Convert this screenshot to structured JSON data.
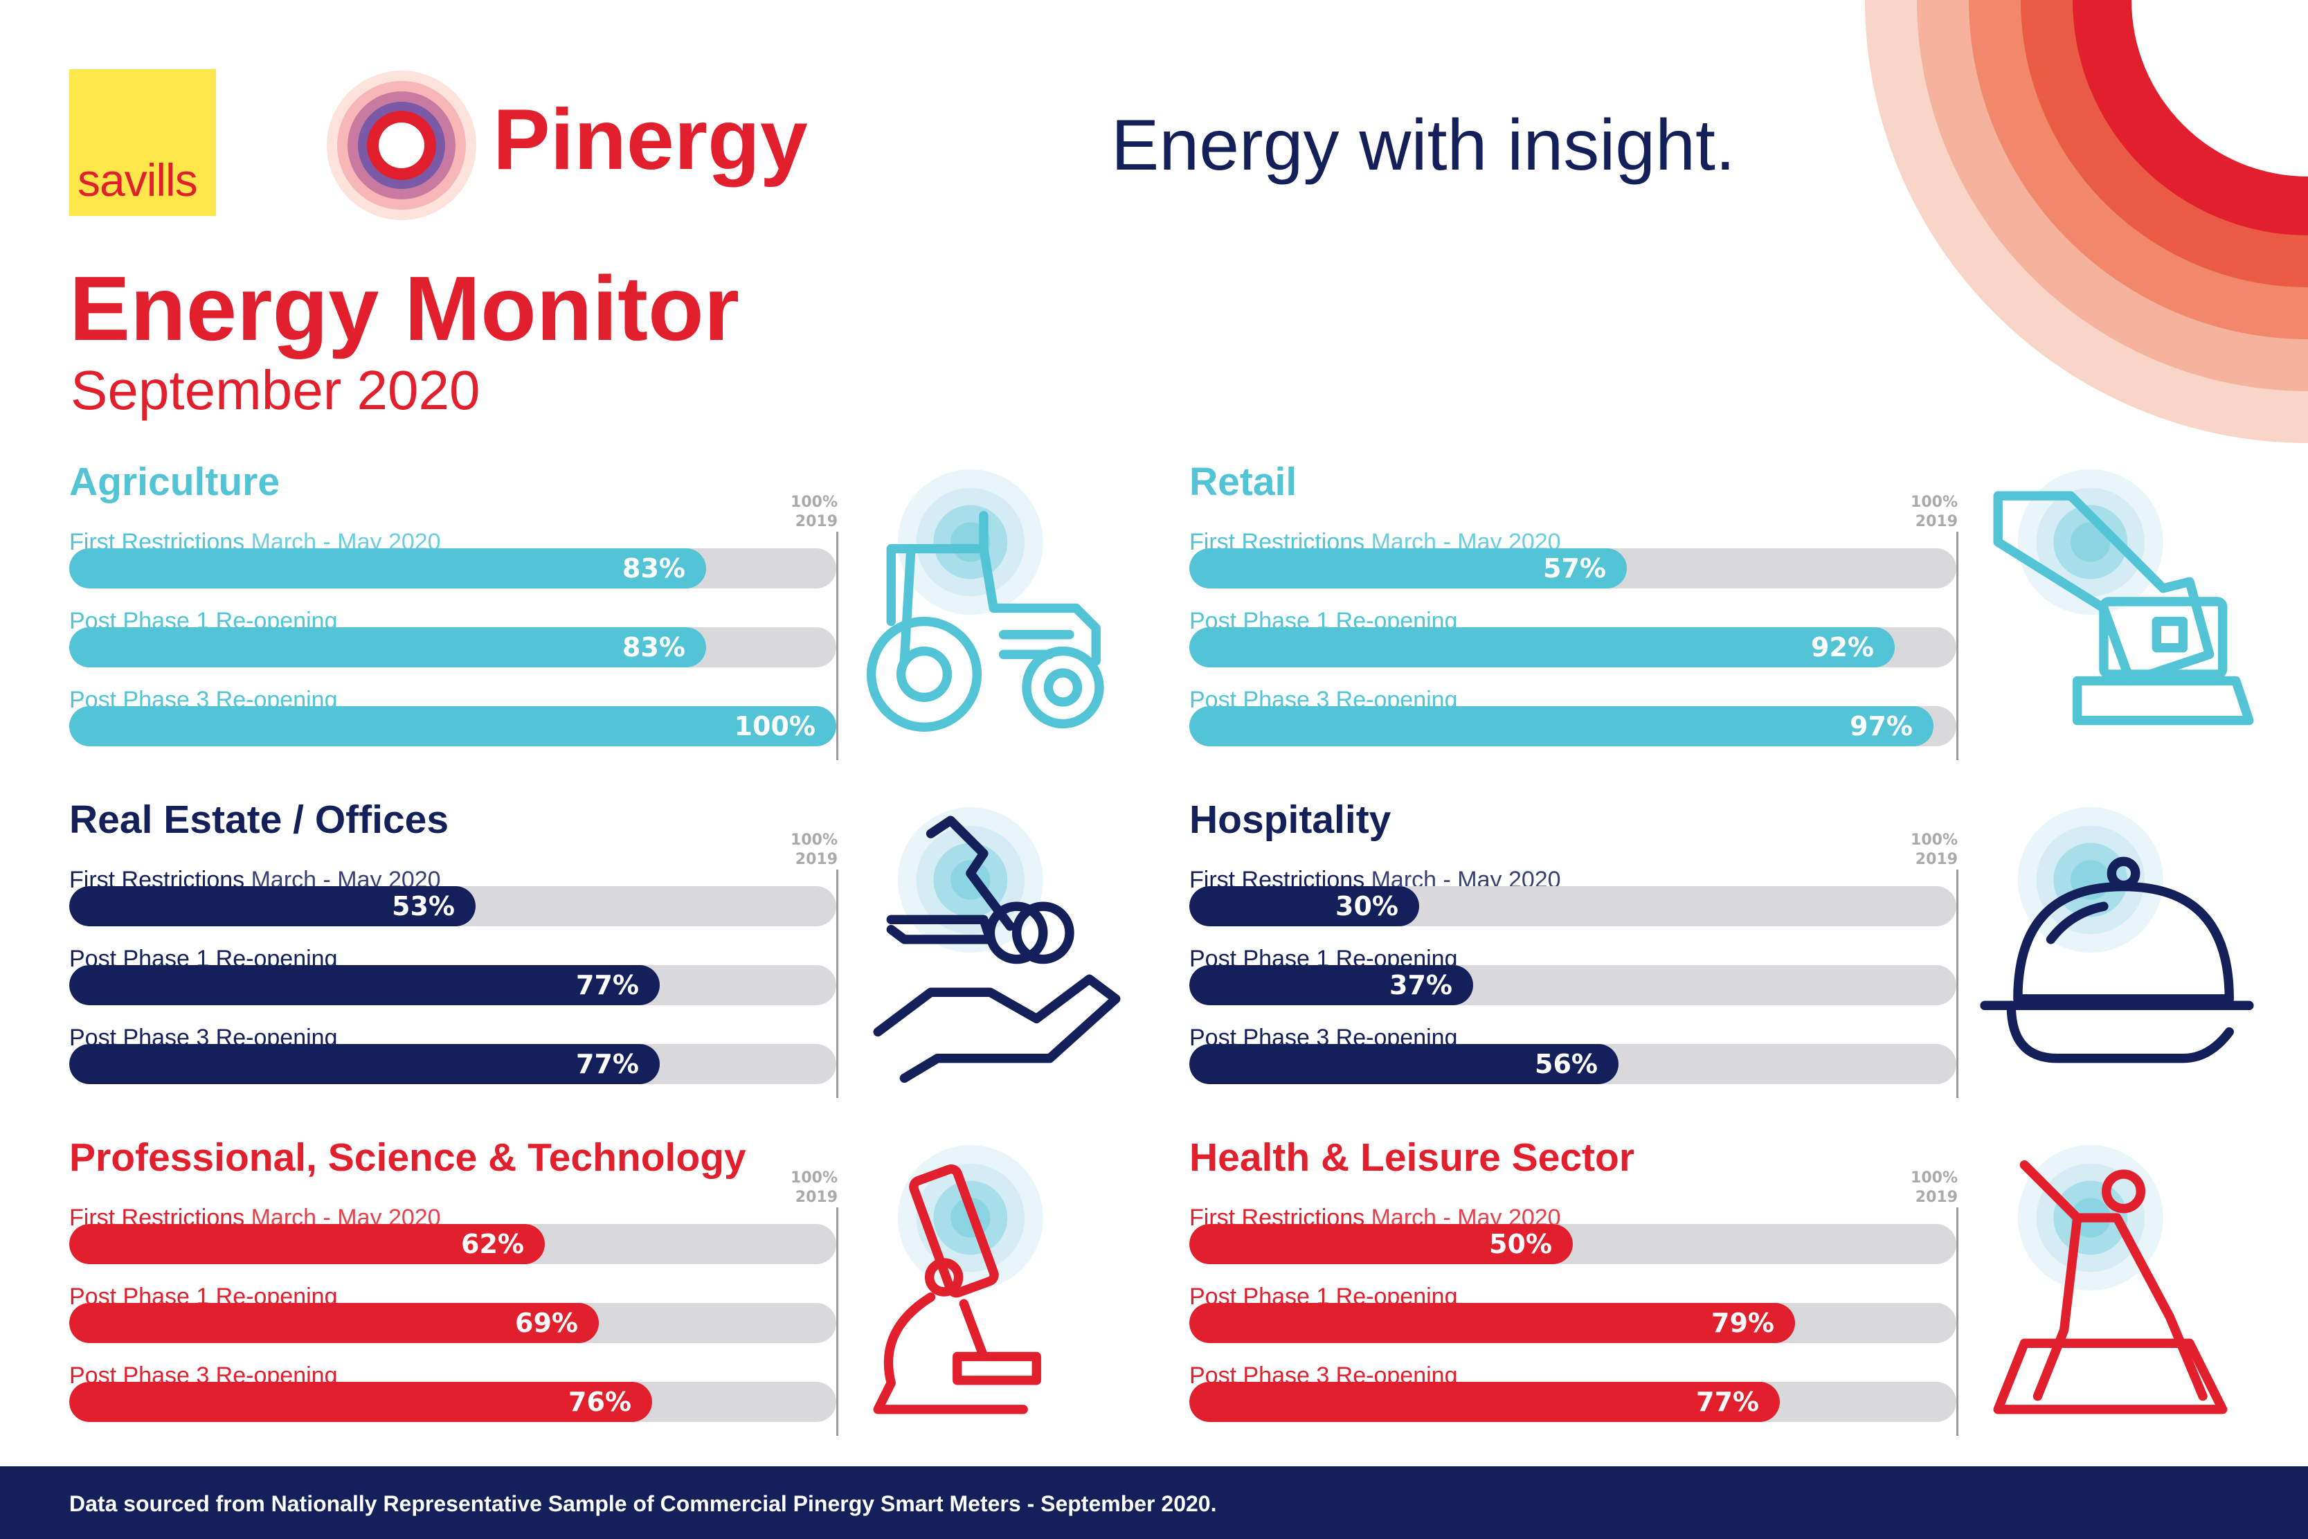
{
  "header": {
    "savills_logo_text": "savills",
    "pinergy_logo_text": "Pinergy",
    "tagline": "Energy with insight.",
    "title": "Energy Monitor",
    "subtitle": "September 2020"
  },
  "colors": {
    "teal": "#52c4d6",
    "navy": "#14205a",
    "red": "#e2202d",
    "track": "#d9d9db",
    "glow": "#bfe3ef"
  },
  "reference": {
    "top": "100%",
    "bottom": "2019"
  },
  "chart_data": [
    {
      "type": "bar",
      "title": "Agriculture",
      "color": "teal",
      "icon": "tractor-icon",
      "categories": [
        "First Restrictions March - May 2020",
        "Post Phase 1 Re-opening",
        "Post Phase 3 Re-opening"
      ],
      "label_emphasis": [
        "First Restrictions",
        "",
        ""
      ],
      "label_tail": [
        " March - May 2020",
        "Post Phase 1 Re-opening",
        "Post Phase 3 Re-opening"
      ],
      "values": [
        83,
        83,
        100
      ],
      "value_labels": [
        "83%",
        "83%",
        "100%"
      ],
      "ylim": [
        0,
        100
      ]
    },
    {
      "type": "bar",
      "title": "Retail",
      "color": "teal",
      "icon": "retail-card-icon",
      "categories": [
        "First Restrictions March - May 2020",
        "Post Phase 1 Re-opening",
        "Post Phase 3 Re-opening"
      ],
      "label_emphasis": [
        "First Restrictions",
        "",
        ""
      ],
      "label_tail": [
        " March - May 2020",
        "Post Phase 1 Re-opening",
        "Post Phase 3 Re-opening"
      ],
      "values": [
        57,
        92,
        97
      ],
      "value_labels": [
        "57%",
        "92%",
        "97%"
      ],
      "ylim": [
        0,
        100
      ]
    },
    {
      "type": "bar",
      "title": "Real Estate / Offices",
      "color": "navy",
      "icon": "hand-keys-icon",
      "categories": [
        "First Restrictions March - May 2020",
        "Post Phase 1 Re-opening",
        "Post Phase 3 Re-opening"
      ],
      "label_emphasis": [
        "First Restrictions",
        "",
        ""
      ],
      "label_tail": [
        " March - May 2020",
        "Post Phase 1 Re-opening",
        "Post Phase 3 Re-opening"
      ],
      "values": [
        53,
        77,
        77
      ],
      "value_labels": [
        "53%",
        "77%",
        "77%"
      ],
      "ylim": [
        0,
        100
      ]
    },
    {
      "type": "bar",
      "title": "Hospitality",
      "color": "navy",
      "icon": "cloche-icon",
      "categories": [
        "First Restrictions March - May 2020",
        "Post Phase 1 Re-opening",
        "Post Phase 3 Re-opening"
      ],
      "label_emphasis": [
        "First Restrictions",
        "",
        ""
      ],
      "label_tail": [
        " March - May 2020",
        "Post Phase 1 Re-opening",
        "Post Phase 3 Re-opening"
      ],
      "values": [
        30,
        37,
        56
      ],
      "value_labels": [
        "30%",
        "37%",
        "56%"
      ],
      "ylim": [
        0,
        100
      ]
    },
    {
      "type": "bar",
      "title": "Professional, Science & Technology",
      "color": "red",
      "icon": "microscope-icon",
      "categories": [
        "First Restrictions March - May 2020",
        "Post Phase 1 Re-opening",
        "Post Phase 3 Re-opening"
      ],
      "label_emphasis": [
        "First Restrictions",
        "",
        ""
      ],
      "label_tail": [
        " March - May 2020",
        "Post Phase 1 Re-opening",
        "Post Phase 3 Re-opening"
      ],
      "values": [
        62,
        69,
        76
      ],
      "value_labels": [
        "62%",
        "69%",
        "76%"
      ],
      "ylim": [
        0,
        100
      ]
    },
    {
      "type": "bar",
      "title": "Health & Leisure Sector",
      "color": "red",
      "icon": "yoga-icon",
      "categories": [
        "First Restrictions March - May 2020",
        "Post Phase 1 Re-opening",
        "Post Phase 3 Re-opening"
      ],
      "label_emphasis": [
        "First Restrictions",
        "",
        ""
      ],
      "label_tail": [
        " March - May 2020",
        "Post Phase 1 Re-opening",
        "Post Phase 3 Re-opening"
      ],
      "values": [
        50,
        79,
        77
      ],
      "value_labels": [
        "50%",
        "79%",
        "77%"
      ],
      "ylim": [
        0,
        100
      ]
    }
  ],
  "footer": {
    "text": "Data sourced from Nationally Representative Sample of Commercial Pinergy Smart Meters - September 2020."
  }
}
